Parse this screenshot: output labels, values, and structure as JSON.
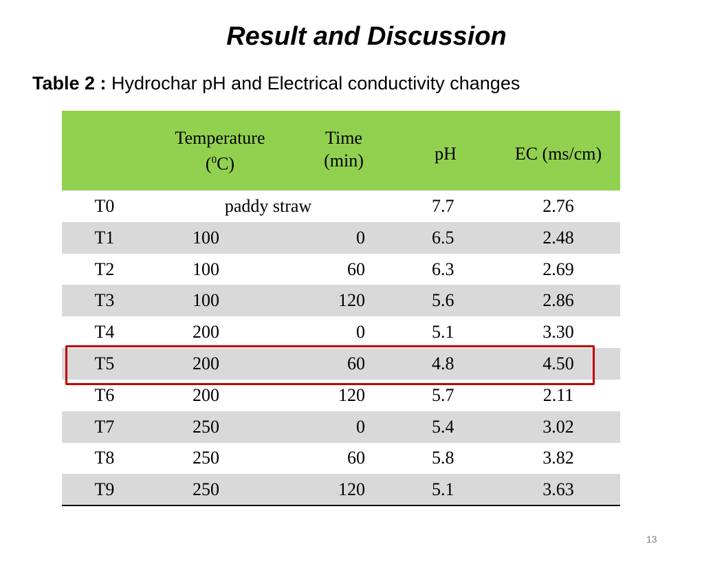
{
  "header": {
    "title": "Result and Discussion",
    "caption_label": "Table 2 :",
    "caption_text": "Hydrochar pH and Electrical conductivity changes"
  },
  "table": {
    "columns": {
      "temperature": {
        "line1": "Temperature",
        "open": "(",
        "sup": "0",
        "close": "C)"
      },
      "time": {
        "line1": "Time",
        "line2": "(min)"
      },
      "ph": "pH",
      "ec": "EC (ms/cm)"
    },
    "rows": [
      [
        "T0",
        "paddy straw",
        "7.7",
        "2.76"
      ],
      [
        "T1",
        "100",
        "0",
        "6.5",
        "2.48"
      ],
      [
        "T2",
        "100",
        "60",
        "6.3",
        "2.69"
      ],
      [
        "T3",
        "100",
        "120",
        "5.6",
        "2.86"
      ],
      [
        "T4",
        "200",
        "0",
        "5.1",
        "3.30"
      ],
      [
        "T5",
        "200",
        "60",
        "4.8",
        "4.50"
      ],
      [
        "T6",
        "200",
        "120",
        "5.7",
        "2.11"
      ],
      [
        "T7",
        "250",
        "0",
        "5.4",
        "3.02"
      ],
      [
        "T8",
        "250",
        "60",
        "5.8",
        "3.82"
      ],
      [
        "T9",
        "250",
        "120",
        "5.1",
        "3.63"
      ]
    ]
  },
  "footer": {
    "page_number": "13"
  }
}
